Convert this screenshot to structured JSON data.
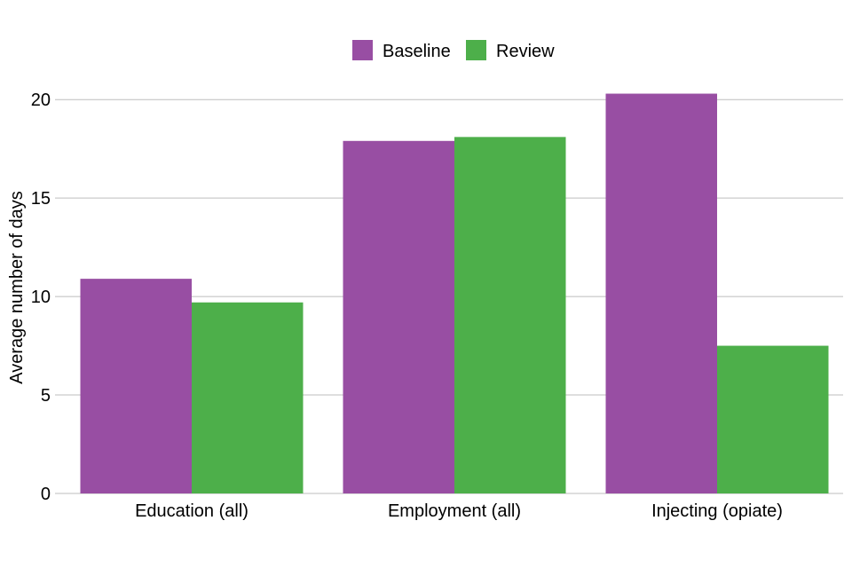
{
  "chart_data": {
    "type": "bar",
    "title": "",
    "xlabel": "",
    "ylabel": "Average number of days",
    "ylim": [
      0,
      21
    ],
    "yticks": [
      0,
      5,
      10,
      15,
      20
    ],
    "grid": "horizontal",
    "legend_position": "top-center",
    "categories": [
      "Education (all)",
      "Employment (all)",
      "Injecting (opiate)"
    ],
    "series": [
      {
        "name": "Baseline",
        "color": "#984EA3",
        "values": [
          10.9,
          17.9,
          20.3
        ]
      },
      {
        "name": "Review",
        "color": "#4DAF4A",
        "values": [
          9.7,
          18.1,
          7.5
        ]
      }
    ]
  }
}
